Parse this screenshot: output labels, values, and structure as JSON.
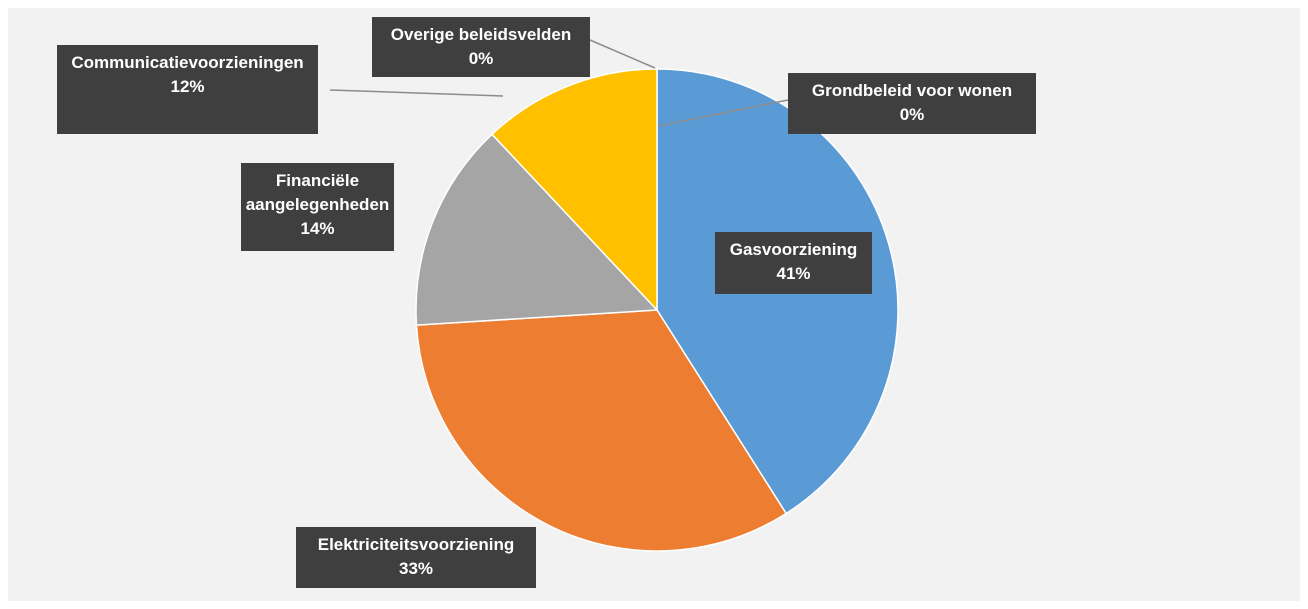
{
  "chart_data": {
    "type": "pie",
    "categories": [
      "Gasvoorziening",
      "Elektriciteitsvoorziening",
      "Financiële aangelegenheden",
      "Communicatievoorzieningen",
      "Overige beleidsvelden",
      "Grondbeleid voor wonen"
    ],
    "values": [
      41,
      33,
      14,
      12,
      0,
      0
    ],
    "value_labels": [
      "41%",
      "33%",
      "14%",
      "12%",
      "0%",
      "0%"
    ],
    "colors": [
      "#5b9bd5",
      "#ed7d31",
      "#a5a5a5",
      "#ffc000",
      "#4472c4",
      "#70ad47"
    ]
  }
}
